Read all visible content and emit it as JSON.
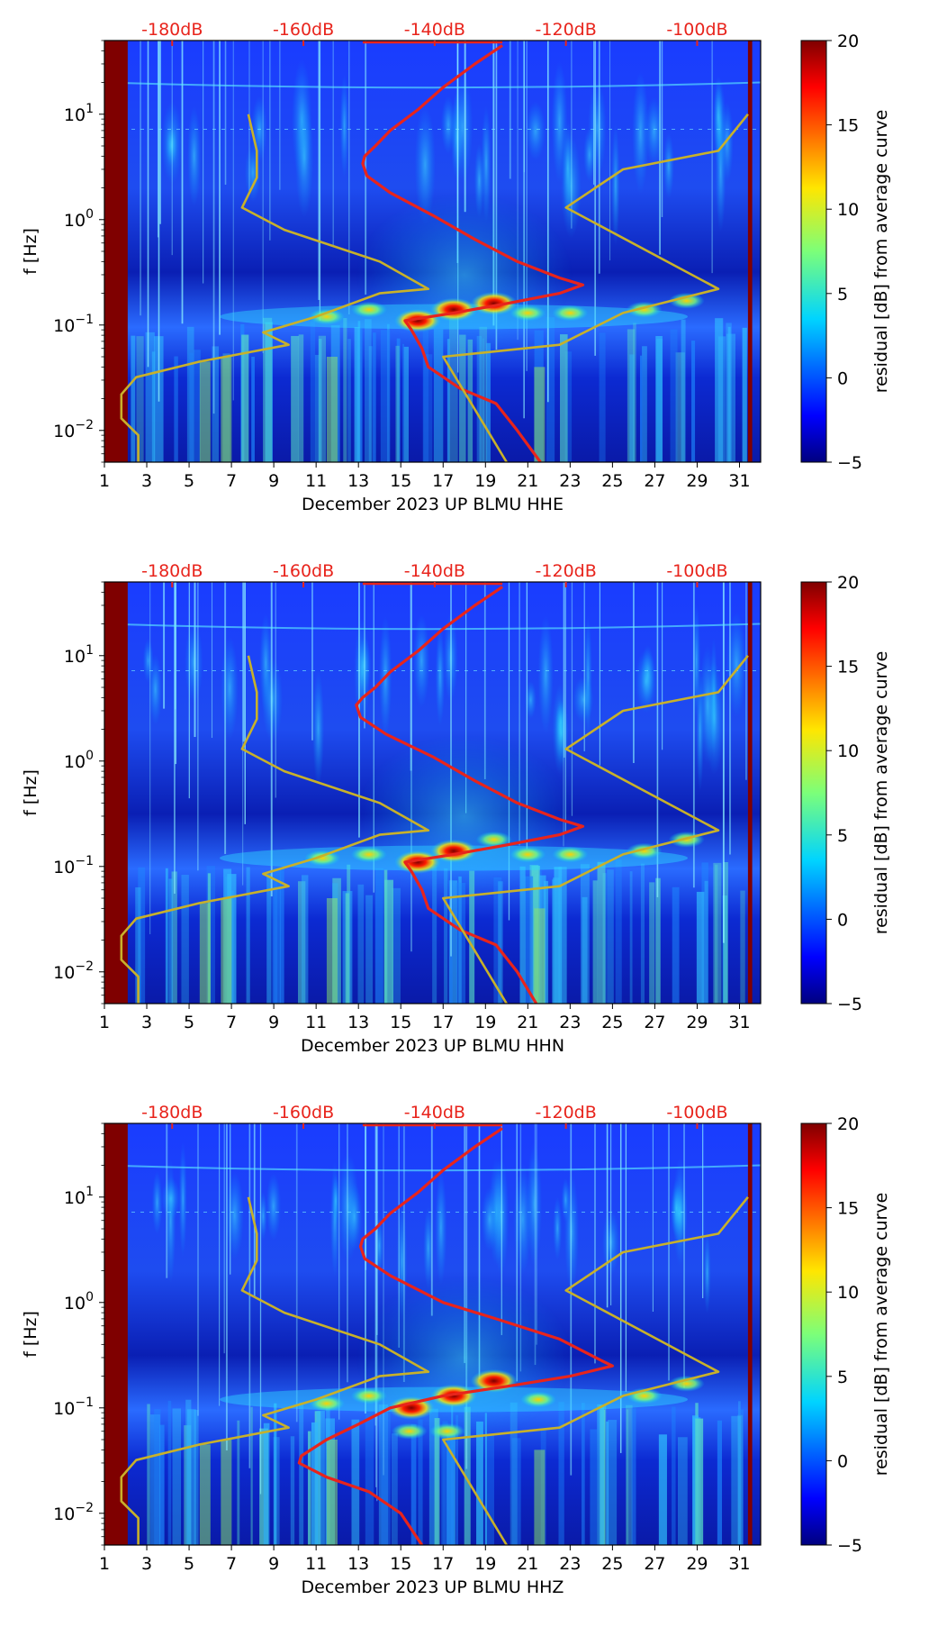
{
  "figure_title": "",
  "chart_data": [
    {
      "type": "heatmap",
      "title": "",
      "xlabel": "December 2023 UP BLMU  HHE",
      "ylabel": "f [Hz]",
      "xlim": [
        1,
        32
      ],
      "ylim": [
        0.005,
        50
      ],
      "yscale": "log",
      "x_ticks": [
        "1",
        "3",
        "5",
        "7",
        "9",
        "11",
        "13",
        "15",
        "17",
        "19",
        "21",
        "23",
        "25",
        "27",
        "29",
        "31"
      ],
      "y_ticks": [
        {
          "value": 0.01,
          "base": "10",
          "exp": "−2"
        },
        {
          "value": 0.1,
          "base": "10",
          "exp": "−1"
        },
        {
          "value": 1,
          "base": "10",
          "exp": "0"
        },
        {
          "value": 10,
          "base": "10",
          "exp": "1"
        }
      ],
      "top_axis": {
        "labels": [
          "-180dB",
          "-160dB",
          "-140dB",
          "-120dB",
          "-100dB"
        ],
        "day_positions": [
          4.2,
          10.4,
          16.6,
          22.8,
          29.0
        ]
      },
      "colorbar": {
        "label": "residual [dB] from average curve",
        "range": [
          -5,
          20
        ],
        "ticks": [
          "20",
          "15",
          "10",
          "5",
          "0",
          "−5"
        ]
      },
      "background_bands": [
        {
          "x0": 1,
          "x1": 2.1,
          "value": 20
        },
        {
          "x0": 31.4,
          "x1": 31.6,
          "value": 20
        }
      ],
      "hot_spots": [
        {
          "day": 15.8,
          "freq": 0.11,
          "value": 20
        },
        {
          "day": 17.5,
          "freq": 0.14,
          "value": 20
        },
        {
          "day": 19.4,
          "freq": 0.16,
          "value": 15
        },
        {
          "day": 11.5,
          "freq": 0.12,
          "value": 6
        },
        {
          "day": 13.5,
          "freq": 0.14,
          "value": 5
        },
        {
          "day": 21.0,
          "freq": 0.13,
          "value": 5
        },
        {
          "day": 23.0,
          "freq": 0.13,
          "value": 6
        },
        {
          "day": 28.5,
          "freq": 0.17,
          "value": 13
        },
        {
          "day": 26.5,
          "freq": 0.14,
          "value": 8
        }
      ],
      "series": [
        {
          "name": "PSD curve (dB)",
          "color": "#e8241c",
          "points": [
            [
              19.8,
              45
            ],
            [
              18.5,
              30
            ],
            [
              17.0,
              18
            ],
            [
              15.8,
              11
            ],
            [
              14.5,
              7
            ],
            [
              13.8,
              5
            ],
            [
              13.3,
              4
            ],
            [
              13.2,
              3.4
            ],
            [
              13.4,
              2.6
            ],
            [
              14.5,
              1.8
            ],
            [
              16.5,
              1.1
            ],
            [
              18.5,
              0.65
            ],
            [
              20.5,
              0.4
            ],
            [
              22.5,
              0.28
            ],
            [
              23.6,
              0.24
            ],
            [
              22.5,
              0.2
            ],
            [
              20.0,
              0.16
            ],
            [
              17.5,
              0.13
            ],
            [
              15.2,
              0.11
            ],
            [
              15.5,
              0.09
            ],
            [
              16.0,
              0.06
            ],
            [
              16.3,
              0.04
            ],
            [
              17.8,
              0.025
            ],
            [
              19.5,
              0.018
            ],
            [
              20.5,
              0.01
            ],
            [
              21.6,
              0.005
            ]
          ]
        },
        {
          "name": "noise model envelope",
          "color": "#c8b12a",
          "points": [
            [
              7.8,
              10
            ],
            [
              8.2,
              4.5
            ],
            [
              8.2,
              2.5
            ],
            [
              7.5,
              1.3
            ],
            [
              9.5,
              0.8
            ],
            [
              14.0,
              0.4
            ],
            [
              16.3,
              0.22
            ],
            [
              14.0,
              0.2
            ],
            [
              11.0,
              0.12
            ],
            [
              8.5,
              0.085
            ],
            [
              9.7,
              0.065
            ],
            [
              5.5,
              0.045
            ],
            [
              2.5,
              0.032
            ],
            [
              1.8,
              0.022
            ],
            [
              1.8,
              0.013
            ],
            [
              2.6,
              0.009
            ],
            [
              2.6,
              0.005
            ]
          ]
        },
        {
          "name": "noise model envelope high",
          "color": "#c8b12a",
          "points": [
            [
              31.4,
              10
            ],
            [
              30.0,
              4.5
            ],
            [
              25.5,
              3.0
            ],
            [
              22.8,
              1.3
            ],
            [
              30.0,
              0.22
            ],
            [
              25.5,
              0.13
            ],
            [
              22.5,
              0.065
            ],
            [
              17.0,
              0.05
            ],
            [
              20.0,
              0.005
            ]
          ]
        }
      ]
    },
    {
      "type": "heatmap",
      "title": "",
      "xlabel": "December 2023 UP BLMU  HHN",
      "ylabel": "f [Hz]",
      "xlim": [
        1,
        32
      ],
      "ylim": [
        0.005,
        50
      ],
      "yscale": "log",
      "x_ticks": [
        "1",
        "3",
        "5",
        "7",
        "9",
        "11",
        "13",
        "15",
        "17",
        "19",
        "21",
        "23",
        "25",
        "27",
        "29",
        "31"
      ],
      "y_ticks": [
        {
          "value": 0.01,
          "base": "10",
          "exp": "−2"
        },
        {
          "value": 0.1,
          "base": "10",
          "exp": "−1"
        },
        {
          "value": 1,
          "base": "10",
          "exp": "0"
        },
        {
          "value": 10,
          "base": "10",
          "exp": "1"
        }
      ],
      "top_axis": {
        "labels": [
          "-180dB",
          "-160dB",
          "-140dB",
          "-120dB",
          "-100dB"
        ],
        "day_positions": [
          4.2,
          10.4,
          16.6,
          22.8,
          29.0
        ]
      },
      "colorbar": {
        "label": "residual [dB] from average curve",
        "range": [
          -5,
          20
        ],
        "ticks": [
          "20",
          "15",
          "10",
          "5",
          "0",
          "−5"
        ]
      },
      "background_bands": [
        {
          "x0": 1,
          "x1": 2.1,
          "value": 20
        },
        {
          "x0": 31.4,
          "x1": 31.6,
          "value": 20
        }
      ],
      "hot_spots": [
        {
          "day": 15.8,
          "freq": 0.11,
          "value": 20
        },
        {
          "day": 17.5,
          "freq": 0.14,
          "value": 20
        },
        {
          "day": 19.4,
          "freq": 0.18,
          "value": 13
        },
        {
          "day": 11.3,
          "freq": 0.12,
          "value": 7
        },
        {
          "day": 13.5,
          "freq": 0.13,
          "value": 5
        },
        {
          "day": 21.0,
          "freq": 0.13,
          "value": 5
        },
        {
          "day": 23.0,
          "freq": 0.13,
          "value": 7
        },
        {
          "day": 28.5,
          "freq": 0.18,
          "value": 12
        },
        {
          "day": 26.5,
          "freq": 0.14,
          "value": 8
        }
      ],
      "series": [
        {
          "name": "PSD curve (dB)",
          "color": "#e8241c",
          "points": [
            [
              19.8,
              45
            ],
            [
              18.5,
              30
            ],
            [
              17.0,
              18
            ],
            [
              15.8,
              11
            ],
            [
              14.5,
              7
            ],
            [
              13.8,
              5
            ],
            [
              13.2,
              4
            ],
            [
              12.9,
              3.4
            ],
            [
              13.1,
              2.6
            ],
            [
              14.3,
              1.8
            ],
            [
              16.5,
              1.1
            ],
            [
              18.5,
              0.65
            ],
            [
              20.5,
              0.4
            ],
            [
              22.5,
              0.28
            ],
            [
              23.6,
              0.24
            ],
            [
              22.5,
              0.2
            ],
            [
              20.0,
              0.16
            ],
            [
              17.5,
              0.13
            ],
            [
              15.2,
              0.11
            ],
            [
              15.5,
              0.09
            ],
            [
              16.0,
              0.06
            ],
            [
              16.3,
              0.04
            ],
            [
              17.8,
              0.025
            ],
            [
              19.5,
              0.018
            ],
            [
              20.5,
              0.01
            ],
            [
              21.4,
              0.005
            ]
          ]
        },
        {
          "name": "noise model envelope",
          "color": "#c8b12a",
          "points": [
            [
              7.8,
              10
            ],
            [
              8.2,
              4.5
            ],
            [
              8.2,
              2.5
            ],
            [
              7.5,
              1.3
            ],
            [
              9.5,
              0.8
            ],
            [
              14.0,
              0.4
            ],
            [
              16.3,
              0.22
            ],
            [
              14.0,
              0.2
            ],
            [
              11.0,
              0.12
            ],
            [
              8.5,
              0.085
            ],
            [
              9.7,
              0.065
            ],
            [
              5.5,
              0.045
            ],
            [
              2.5,
              0.032
            ],
            [
              1.8,
              0.022
            ],
            [
              1.8,
              0.013
            ],
            [
              2.6,
              0.009
            ],
            [
              2.6,
              0.005
            ]
          ]
        },
        {
          "name": "noise model envelope high",
          "color": "#c8b12a",
          "points": [
            [
              31.4,
              10
            ],
            [
              30.0,
              4.5
            ],
            [
              25.5,
              3.0
            ],
            [
              22.8,
              1.3
            ],
            [
              30.0,
              0.22
            ],
            [
              25.5,
              0.13
            ],
            [
              22.5,
              0.065
            ],
            [
              17.0,
              0.05
            ],
            [
              20.0,
              0.005
            ]
          ]
        }
      ]
    },
    {
      "type": "heatmap",
      "title": "",
      "xlabel": "December 2023 UP BLMU  HHZ",
      "ylabel": "f [Hz]",
      "xlim": [
        1,
        32
      ],
      "ylim": [
        0.005,
        50
      ],
      "yscale": "log",
      "x_ticks": [
        "1",
        "3",
        "5",
        "7",
        "9",
        "11",
        "13",
        "15",
        "17",
        "19",
        "21",
        "23",
        "25",
        "27",
        "29",
        "31"
      ],
      "y_ticks": [
        {
          "value": 0.01,
          "base": "10",
          "exp": "−2"
        },
        {
          "value": 0.1,
          "base": "10",
          "exp": "−1"
        },
        {
          "value": 1,
          "base": "10",
          "exp": "0"
        },
        {
          "value": 10,
          "base": "10",
          "exp": "1"
        }
      ],
      "top_axis": {
        "labels": [
          "-180dB",
          "-160dB",
          "-140dB",
          "-120dB",
          "-100dB"
        ],
        "day_positions": [
          4.2,
          10.4,
          16.6,
          22.8,
          29.0
        ]
      },
      "colorbar": {
        "label": "residual [dB] from average curve",
        "range": [
          -5,
          20
        ],
        "ticks": [
          "20",
          "15",
          "10",
          "5",
          "0",
          "−5"
        ]
      },
      "background_bands": [
        {
          "x0": 1,
          "x1": 2.1,
          "value": 20
        },
        {
          "x0": 31.4,
          "x1": 31.6,
          "value": 20
        }
      ],
      "hot_spots": [
        {
          "day": 15.5,
          "freq": 0.1,
          "value": 20
        },
        {
          "day": 17.5,
          "freq": 0.13,
          "value": 20
        },
        {
          "day": 19.4,
          "freq": 0.18,
          "value": 15
        },
        {
          "day": 11.5,
          "freq": 0.11,
          "value": 6
        },
        {
          "day": 13.5,
          "freq": 0.13,
          "value": 5
        },
        {
          "day": 15.4,
          "freq": 0.06,
          "value": 10
        },
        {
          "day": 17.2,
          "freq": 0.06,
          "value": 9
        },
        {
          "day": 21.5,
          "freq": 0.12,
          "value": 6
        },
        {
          "day": 28.5,
          "freq": 0.17,
          "value": 13
        },
        {
          "day": 26.5,
          "freq": 0.13,
          "value": 8
        }
      ],
      "series": [
        {
          "name": "PSD curve (dB)",
          "color": "#e8241c",
          "points": [
            [
              19.8,
              45
            ],
            [
              18.5,
              30
            ],
            [
              17.0,
              18
            ],
            [
              15.8,
              11
            ],
            [
              14.5,
              7
            ],
            [
              13.8,
              5
            ],
            [
              13.2,
              4
            ],
            [
              13.1,
              3.4
            ],
            [
              13.3,
              2.6
            ],
            [
              14.5,
              1.8
            ],
            [
              17.0,
              1.0
            ],
            [
              19.5,
              0.7
            ],
            [
              22.5,
              0.45
            ],
            [
              24.5,
              0.28
            ],
            [
              25.0,
              0.25
            ],
            [
              23.0,
              0.2
            ],
            [
              20.0,
              0.16
            ],
            [
              17.0,
              0.13
            ],
            [
              14.5,
              0.1
            ],
            [
              13.0,
              0.07
            ],
            [
              11.5,
              0.05
            ],
            [
              10.3,
              0.035
            ],
            [
              10.2,
              0.03
            ],
            [
              11.5,
              0.022
            ],
            [
              13.5,
              0.016
            ],
            [
              15.0,
              0.01
            ],
            [
              16.0,
              0.005
            ]
          ]
        },
        {
          "name": "noise model envelope",
          "color": "#c8b12a",
          "points": [
            [
              7.8,
              10
            ],
            [
              8.2,
              4.5
            ],
            [
              8.2,
              2.5
            ],
            [
              7.5,
              1.3
            ],
            [
              9.5,
              0.8
            ],
            [
              14.0,
              0.4
            ],
            [
              16.3,
              0.22
            ],
            [
              14.0,
              0.2
            ],
            [
              11.0,
              0.12
            ],
            [
              8.5,
              0.085
            ],
            [
              9.7,
              0.065
            ],
            [
              5.5,
              0.045
            ],
            [
              2.5,
              0.032
            ],
            [
              1.8,
              0.022
            ],
            [
              1.8,
              0.013
            ],
            [
              2.6,
              0.009
            ],
            [
              2.6,
              0.005
            ]
          ]
        },
        {
          "name": "noise model envelope high",
          "color": "#c8b12a",
          "points": [
            [
              31.4,
              10
            ],
            [
              30.0,
              4.5
            ],
            [
              25.5,
              3.0
            ],
            [
              22.8,
              1.3
            ],
            [
              30.0,
              0.22
            ],
            [
              25.5,
              0.13
            ],
            [
              22.5,
              0.065
            ],
            [
              17.0,
              0.05
            ],
            [
              20.0,
              0.005
            ]
          ]
        }
      ]
    }
  ]
}
